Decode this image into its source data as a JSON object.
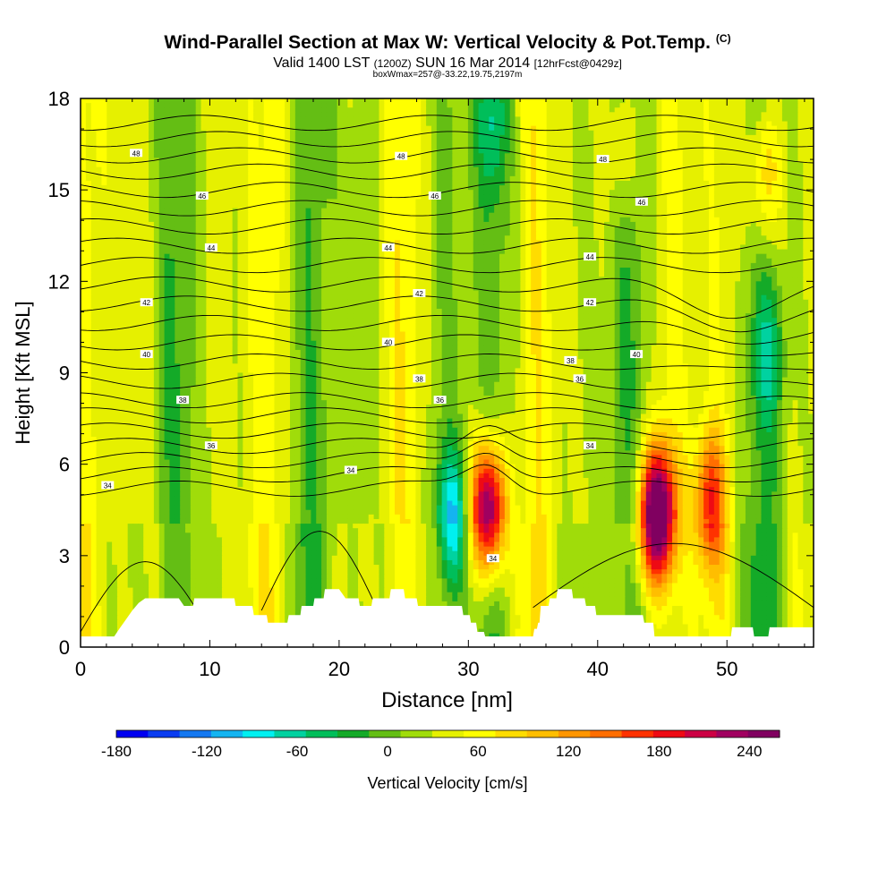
{
  "header": {
    "title": "Wind-Parallel Section at Max W: Vertical Velocity & Pot.Temp.",
    "copyright": "(C)",
    "subtitle_a": "Valid 1400 LST",
    "subtitle_b": "(1200Z)",
    "subtitle_c": "SUN 16 Mar 2014",
    "subtitle_d": "[12hrFcst@0429z]",
    "box_info": "boxWmax=257@-33.22,19.75,2197m"
  },
  "chart_data": {
    "type": "heatmap",
    "xlabel": "Distance [nm]",
    "ylabel": "Height [Kft MSL]",
    "xlim": [
      0,
      56.7
    ],
    "ylim": [
      0,
      18
    ],
    "x_ticks": [
      "0",
      "10",
      "20",
      "30",
      "40",
      "50"
    ],
    "x_tick_values": [
      0,
      10,
      20,
      30,
      40,
      50
    ],
    "y_ticks": [
      "0",
      "3",
      "6",
      "9",
      "12",
      "15",
      "18"
    ],
    "y_tick_values": [
      0,
      3,
      6,
      9,
      12,
      15,
      18
    ],
    "colorbar": {
      "label": "Vertical Velocity [cm/s]",
      "min": -180,
      "max": 260,
      "step": 20,
      "tick_labels": [
        "-180",
        "-120",
        "-60",
        "0",
        "60",
        "120",
        "180",
        "240"
      ],
      "tick_values": [
        -180,
        -120,
        -60,
        0,
        60,
        120,
        180,
        240
      ],
      "colors": [
        "#0000f0",
        "#0a3cf0",
        "#1478f0",
        "#14b4f0",
        "#00f0f0",
        "#00d2a0",
        "#00be5a",
        "#14aa28",
        "#64be14",
        "#a0dc0a",
        "#e6f000",
        "#ffff00",
        "#ffdc00",
        "#ffbe00",
        "#ff9600",
        "#ff6e00",
        "#ff3200",
        "#ee0a14",
        "#cc0044",
        "#a00060",
        "#800060"
      ]
    },
    "vertical_velocity_features": [
      {
        "x": 31.5,
        "y": 4.5,
        "peak": 230
      },
      {
        "x": 44.6,
        "y": 4.3,
        "peak": 257
      },
      {
        "x": 48.7,
        "y": 4.8,
        "peak": 130
      },
      {
        "x": 28.8,
        "y": 4.2,
        "peak": -110
      },
      {
        "x": 31.8,
        "y": 17.2,
        "peak": -60
      },
      {
        "x": 53.2,
        "y": 9.5,
        "peak": -50
      },
      {
        "x": 53.0,
        "y": 15.5,
        "peak": 90
      },
      {
        "x": 42.0,
        "y": 16.5,
        "peak": 55
      }
    ],
    "theta_contours": [
      {
        "label": "34",
        "height_kft": 5.2
      },
      {
        "label": "36",
        "height_kft": 6.6
      },
      {
        "label": "38",
        "height_kft": 8.1
      },
      {
        "label": "40",
        "height_kft": 10.0
      },
      {
        "label": "42",
        "height_kft": 11.9
      },
      {
        "label": "44",
        "height_kft": 13.8
      },
      {
        "label": "46",
        "height_kft": 15.6
      },
      {
        "label": "48",
        "height_kft": 17.2
      }
    ],
    "contour_labels": [
      {
        "text": "48",
        "x": 4.3,
        "y": 16.2
      },
      {
        "text": "48",
        "x": 24.8,
        "y": 16.1
      },
      {
        "text": "48",
        "x": 40.4,
        "y": 16.0
      },
      {
        "text": "46",
        "x": 9.4,
        "y": 14.8
      },
      {
        "text": "46",
        "x": 27.4,
        "y": 14.8
      },
      {
        "text": "46",
        "x": 43.4,
        "y": 14.6
      },
      {
        "text": "44",
        "x": 10.1,
        "y": 13.1
      },
      {
        "text": "44",
        "x": 23.8,
        "y": 13.1
      },
      {
        "text": "44",
        "x": 39.4,
        "y": 12.8
      },
      {
        "text": "42",
        "x": 5.1,
        "y": 11.3
      },
      {
        "text": "42",
        "x": 26.2,
        "y": 11.6
      },
      {
        "text": "42",
        "x": 39.4,
        "y": 11.3
      },
      {
        "text": "40",
        "x": 5.1,
        "y": 9.6
      },
      {
        "text": "40",
        "x": 23.8,
        "y": 10.0
      },
      {
        "text": "40",
        "x": 43.0,
        "y": 9.6
      },
      {
        "text": "38",
        "x": 7.9,
        "y": 8.1
      },
      {
        "text": "38",
        "x": 26.2,
        "y": 8.8
      },
      {
        "text": "38",
        "x": 37.9,
        "y": 9.4
      },
      {
        "text": "36",
        "x": 10.1,
        "y": 6.6
      },
      {
        "text": "36",
        "x": 27.8,
        "y": 8.1
      },
      {
        "text": "36",
        "x": 38.6,
        "y": 8.8
      },
      {
        "text": "34",
        "x": 2.1,
        "y": 5.3
      },
      {
        "text": "34",
        "x": 20.9,
        "y": 5.8
      },
      {
        "text": "34",
        "x": 39.4,
        "y": 6.6
      },
      {
        "text": "34",
        "x": 31.9,
        "y": 2.9
      }
    ],
    "terrain_kft": [
      [
        0,
        0.35
      ],
      [
        2.6,
        0.35
      ],
      [
        3.0,
        0.6
      ],
      [
        3.5,
        0.9
      ],
      [
        4.0,
        1.2
      ],
      [
        4.5,
        1.45
      ],
      [
        5.0,
        1.6
      ],
      [
        7.6,
        1.6
      ],
      [
        8.0,
        1.35
      ],
      [
        8.7,
        1.35
      ],
      [
        8.8,
        1.6
      ],
      [
        11.9,
        1.6
      ],
      [
        12.0,
        1.35
      ],
      [
        13.3,
        1.35
      ],
      [
        13.4,
        1.05
      ],
      [
        14.4,
        1.05
      ],
      [
        14.5,
        0.8
      ],
      [
        16.0,
        0.8
      ],
      [
        16.1,
        1.05
      ],
      [
        17.0,
        1.05
      ],
      [
        17.1,
        1.35
      ],
      [
        18.0,
        1.35
      ],
      [
        18.1,
        1.6
      ],
      [
        18.8,
        1.6
      ],
      [
        18.9,
        1.9
      ],
      [
        20.0,
        1.9
      ],
      [
        20.5,
        1.6
      ],
      [
        21.5,
        1.6
      ],
      [
        21.6,
        1.35
      ],
      [
        22.5,
        1.35
      ],
      [
        22.6,
        1.6
      ],
      [
        23.9,
        1.6
      ],
      [
        24.0,
        1.9
      ],
      [
        25.0,
        1.9
      ],
      [
        25.1,
        1.6
      ],
      [
        26.0,
        1.6
      ],
      [
        26.1,
        1.35
      ],
      [
        29.5,
        1.35
      ],
      [
        29.6,
        1.05
      ],
      [
        30.1,
        1.05
      ],
      [
        30.2,
        0.8
      ],
      [
        30.6,
        0.8
      ],
      [
        30.7,
        0.5
      ],
      [
        31.2,
        0.5
      ],
      [
        31.3,
        0.35
      ],
      [
        35.0,
        0.35
      ],
      [
        35.1,
        0.6
      ],
      [
        35.3,
        0.6
      ],
      [
        35.4,
        0.8
      ],
      [
        35.5,
        0.8
      ],
      [
        35.6,
        1.35
      ],
      [
        36.2,
        1.35
      ],
      [
        36.3,
        1.6
      ],
      [
        36.8,
        1.6
      ],
      [
        36.9,
        1.9
      ],
      [
        38.0,
        1.9
      ],
      [
        38.1,
        1.6
      ],
      [
        39.0,
        1.6
      ],
      [
        39.1,
        1.35
      ],
      [
        39.8,
        1.35
      ],
      [
        39.9,
        1.05
      ],
      [
        42.5,
        1.05
      ],
      [
        43.5,
        1.05
      ],
      [
        43.6,
        0.8
      ],
      [
        44.3,
        0.8
      ],
      [
        44.4,
        0.35
      ],
      [
        46.6,
        0.35
      ],
      [
        46.7,
        0.35
      ],
      [
        48.0,
        0.35
      ],
      [
        48.5,
        0.35
      ],
      [
        50.3,
        0.35
      ],
      [
        50.4,
        0.65
      ],
      [
        52.0,
        0.65
      ],
      [
        52.1,
        0.35
      ],
      [
        53.2,
        0.35
      ],
      [
        53.3,
        0.65
      ],
      [
        56.7,
        0.65
      ]
    ]
  }
}
